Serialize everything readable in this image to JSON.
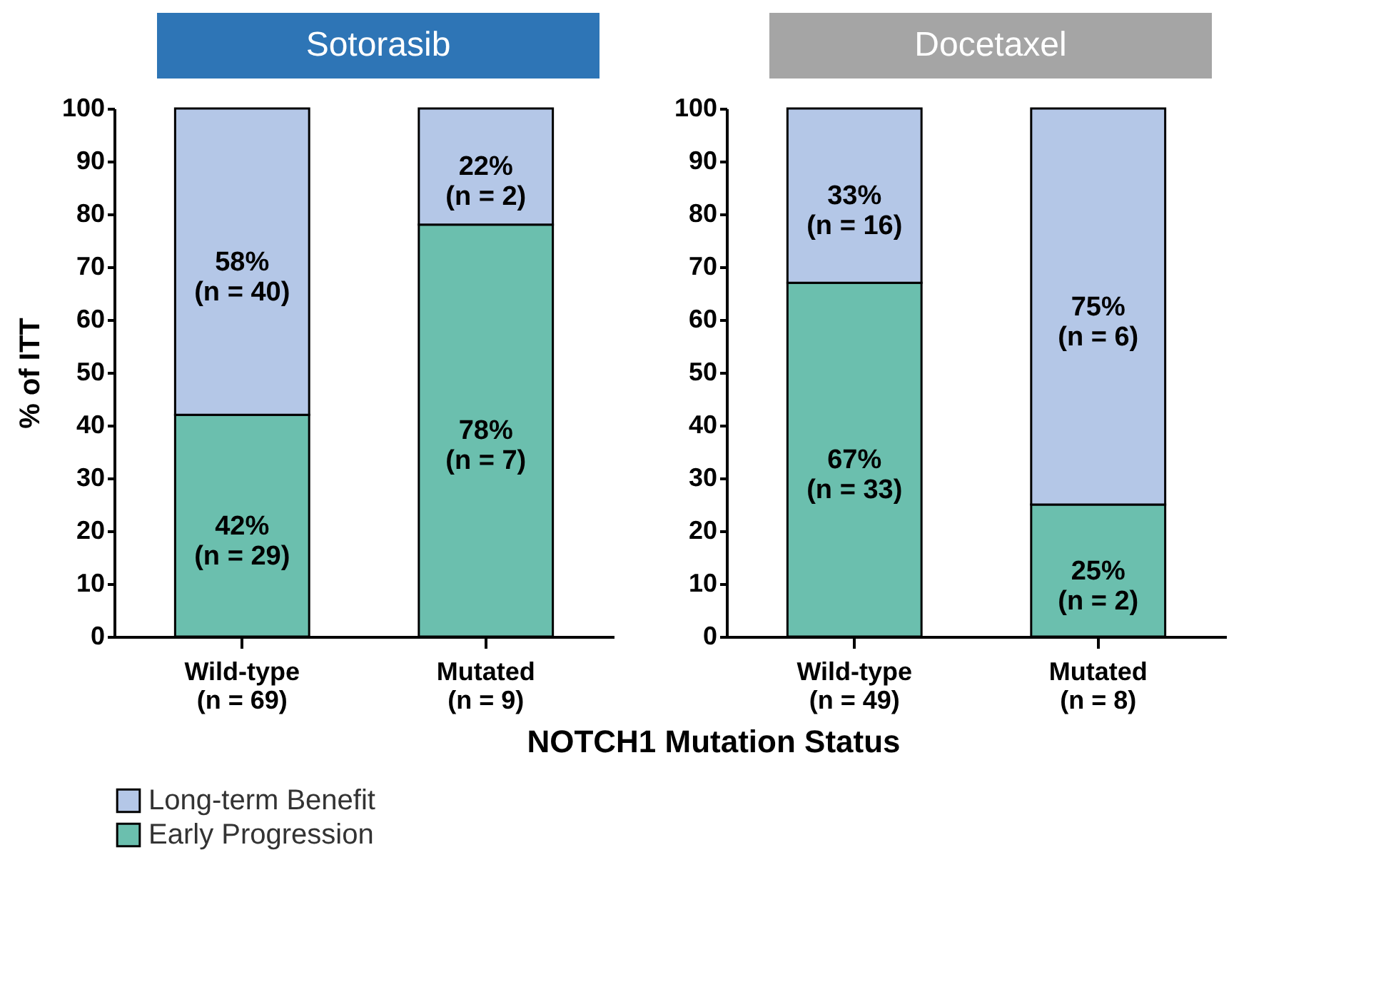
{
  "chart_data": [
    {
      "type": "bar",
      "title": "Sotorasib",
      "ylabel": "% of ITT",
      "xlabel": "NOTCH1 Mutation Status",
      "stacked": true,
      "categories": [
        "Wild-type\n(n = 69)",
        "Mutated\n(n = 9)"
      ],
      "ylim": [
        0,
        100
      ],
      "yticks": [
        0,
        10,
        20,
        30,
        40,
        50,
        60,
        70,
        80,
        90,
        100
      ],
      "legend": "bottom left",
      "series": [
        {
          "name": "Early Progression",
          "color": "#6bbfae",
          "values": [
            42,
            78
          ],
          "value_labels": [
            "42%\n(n = 29)",
            "78%\n(n = 7)"
          ]
        },
        {
          "name": "Long-term Benefit",
          "color": "#b4c7e7",
          "values": [
            58,
            22
          ],
          "value_labels": [
            "58%\n(n = 40)",
            "22%\n(n = 2)"
          ]
        }
      ]
    },
    {
      "type": "bar",
      "title": "Docetaxel",
      "stacked": true,
      "categories": [
        "Wild-type\n(n = 49)",
        "Mutated\n(n = 8)"
      ],
      "ylim": [
        0,
        100
      ],
      "yticks": [
        0,
        10,
        20,
        30,
        40,
        50,
        60,
        70,
        80,
        90,
        100
      ],
      "legend": "bottom left",
      "series": [
        {
          "name": "Early Progression",
          "color": "#6bbfae",
          "values": [
            67,
            25
          ],
          "value_labels": [
            "67%\n(n = 33)",
            "25%\n(n = 2)"
          ]
        },
        {
          "name": "Long-term Benefit",
          "color": "#b4c7e7",
          "values": [
            33,
            75
          ],
          "value_labels": [
            "33%\n(n = 16)",
            "75%\n(n = 6)"
          ]
        }
      ]
    }
  ]
}
